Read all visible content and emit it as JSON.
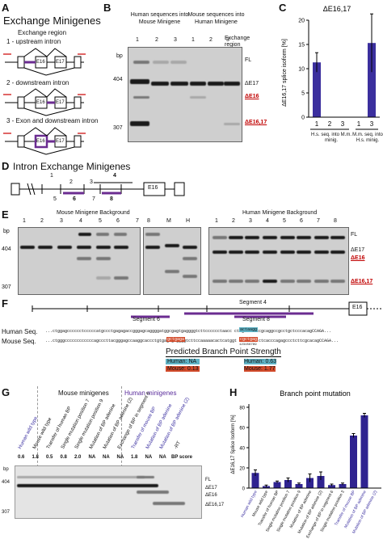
{
  "panelA": {
    "letter": "A",
    "title": "Exchange Minigenes",
    "subtitle": "Exchange region",
    "items": [
      "1 - upstream intron",
      "2 - downstream intron",
      "3 - Exon and downstream intron"
    ],
    "exon1": "E16",
    "exon2": "E17"
  },
  "panelB": {
    "letter": "B",
    "group1": "Human sequences into Mouse Minigene",
    "group2": "Mouse sequences into Human Minigene",
    "lanes": [
      "1",
      "2",
      "3",
      "1",
      "2",
      "3"
    ],
    "exchange_region": "Exchange region",
    "bp_unit": "bp",
    "marker_404": "404",
    "marker_307": "307",
    "labels": [
      "FL",
      "ΔE17",
      "ΔE16",
      "ΔE16,17"
    ]
  },
  "panelC": {
    "letter": "C",
    "chart_data": {
      "type": "bar",
      "title": "ΔE16,17",
      "ylabel": "ΔE16,17 splice isoform [%]",
      "ylim": [
        0,
        20
      ],
      "yticks": [
        "0",
        "5",
        "10",
        "15",
        "20"
      ],
      "categories": [
        "1",
        "2",
        "3",
        "1",
        "3"
      ],
      "values": [
        11.3,
        0,
        0,
        0,
        15.3
      ],
      "errors": [
        2.0,
        0,
        0,
        0,
        6.0
      ],
      "group_labels": [
        "H.s. seq. into M.m. minig.",
        "M.m. seq. into H.s. minig."
      ],
      "bar_color": "#3b2f9e"
    }
  },
  "panelD": {
    "letter": "D",
    "title": "Intron Exchange Minigenes",
    "numbers": [
      "1",
      "2",
      "3",
      "4",
      "5",
      "6",
      "7",
      "8"
    ],
    "exon": "E16"
  },
  "panelE": {
    "letter": "E",
    "mouse_title": "Mouse Minigene Background",
    "human_title": "Human Minigene Background",
    "mouse_lanes": [
      "1",
      "2",
      "3",
      "4",
      "5",
      "6",
      "7"
    ],
    "mid_lanes": [
      "8",
      "M",
      "H"
    ],
    "human_lanes": [
      "1",
      "2",
      "3",
      "4",
      "5",
      "6",
      "7",
      "8"
    ],
    "bp_unit": "bp",
    "marker_404": "404",
    "marker_307": "307",
    "labels": [
      "FL",
      "ΔE17",
      "ΔE16",
      "ΔE16,17"
    ]
  },
  "panelF": {
    "letter": "F",
    "segment4": "Segment 4",
    "segment6": "Segment 6",
    "segment8": "Segment 8",
    "exon": "E16",
    "human_label": "Human Seq.",
    "mouse_label": "Mouse Seq.",
    "human_seq": "...ctggagcccccctcccccatgccctgagagaccgggagcaggggatggcgagtgaggggtcttcccccctaacc ctagtcatcccgcaggccgcctgctcccacagCCAGA...",
    "human_bp": "actaagg",
    "mouse_seq": "...ctgggccccccccccccagcccttacgggagccaaggcaccctgtgagtgaggggtcttccaaaaacactcatggt cctaccc ctcacccagagccctcttcgcacagCCAGA...",
    "mouse_bp": "gctgaga",
    "mouse_bp2": "cgctgag",
    "numbers": "123456789",
    "strength_title": "Predicted Branch Point Strength",
    "human_na": "Human: NA",
    "mouse_val1": "Mouse: 0.13",
    "human_val": "Human: 0.63",
    "mouse_val2": "Mouse: 1.77"
  },
  "panelG": {
    "letter": "G",
    "mouse_header": "Mouse minigenes",
    "human_header": "Human minigenes",
    "lanes": [
      "Human wild type",
      "Mouse wild type",
      "Transfer of human BP",
      "Single mutation position 7",
      "Single mutation position 9",
      "Mutation of BP adenine",
      "Mutation of BP adenine (2)",
      "Exchange of BP in segment 6",
      "Transfer of mouse BP",
      "Mutation of BP adenine",
      "Mutation of BP adenine (2)",
      "-RT"
    ],
    "bp_scores": [
      "0.6",
      "1.8",
      "0.5",
      "0.8",
      "2.0",
      "NA",
      "NA",
      "NA",
      "1.8",
      "NA",
      "NA"
    ],
    "bp_score_label": "BP score",
    "bp_unit": "bp",
    "marker_404": "404",
    "marker_307": "307",
    "labels": [
      "FL",
      "ΔE17",
      "ΔE16",
      "ΔE16,17"
    ]
  },
  "panelH": {
    "letter": "H",
    "chart_data": {
      "type": "bar",
      "title": "Branch point mutation",
      "ylabel": "ΔE16,17 Splice Isoform [%]",
      "ylim": [
        0,
        80
      ],
      "yticks": [
        "0",
        "20",
        "40",
        "60",
        "80"
      ],
      "categories": [
        "Human wild type",
        "Mouse wild type",
        "Transfer of human BP",
        "Single mutation position 7",
        "Single mutation position 9",
        "Mutation of BP adenine",
        "Mutation of BP adenine (2)",
        "Exchange of BP in segment 6",
        "Single mutation position 3",
        "Transfer of mouse BP",
        "Mutation of BP adenine",
        "Mutation of BP adenine (2)"
      ],
      "values": [
        15,
        2,
        6,
        8,
        4,
        10,
        12,
        3,
        4,
        52,
        72,
        0
      ],
      "errors": [
        3,
        1,
        1,
        2,
        1,
        4,
        4,
        1,
        1,
        2,
        2,
        0
      ],
      "blue_categories": [
        0,
        9,
        10,
        11
      ],
      "bar_color": "#2f2390"
    }
  }
}
